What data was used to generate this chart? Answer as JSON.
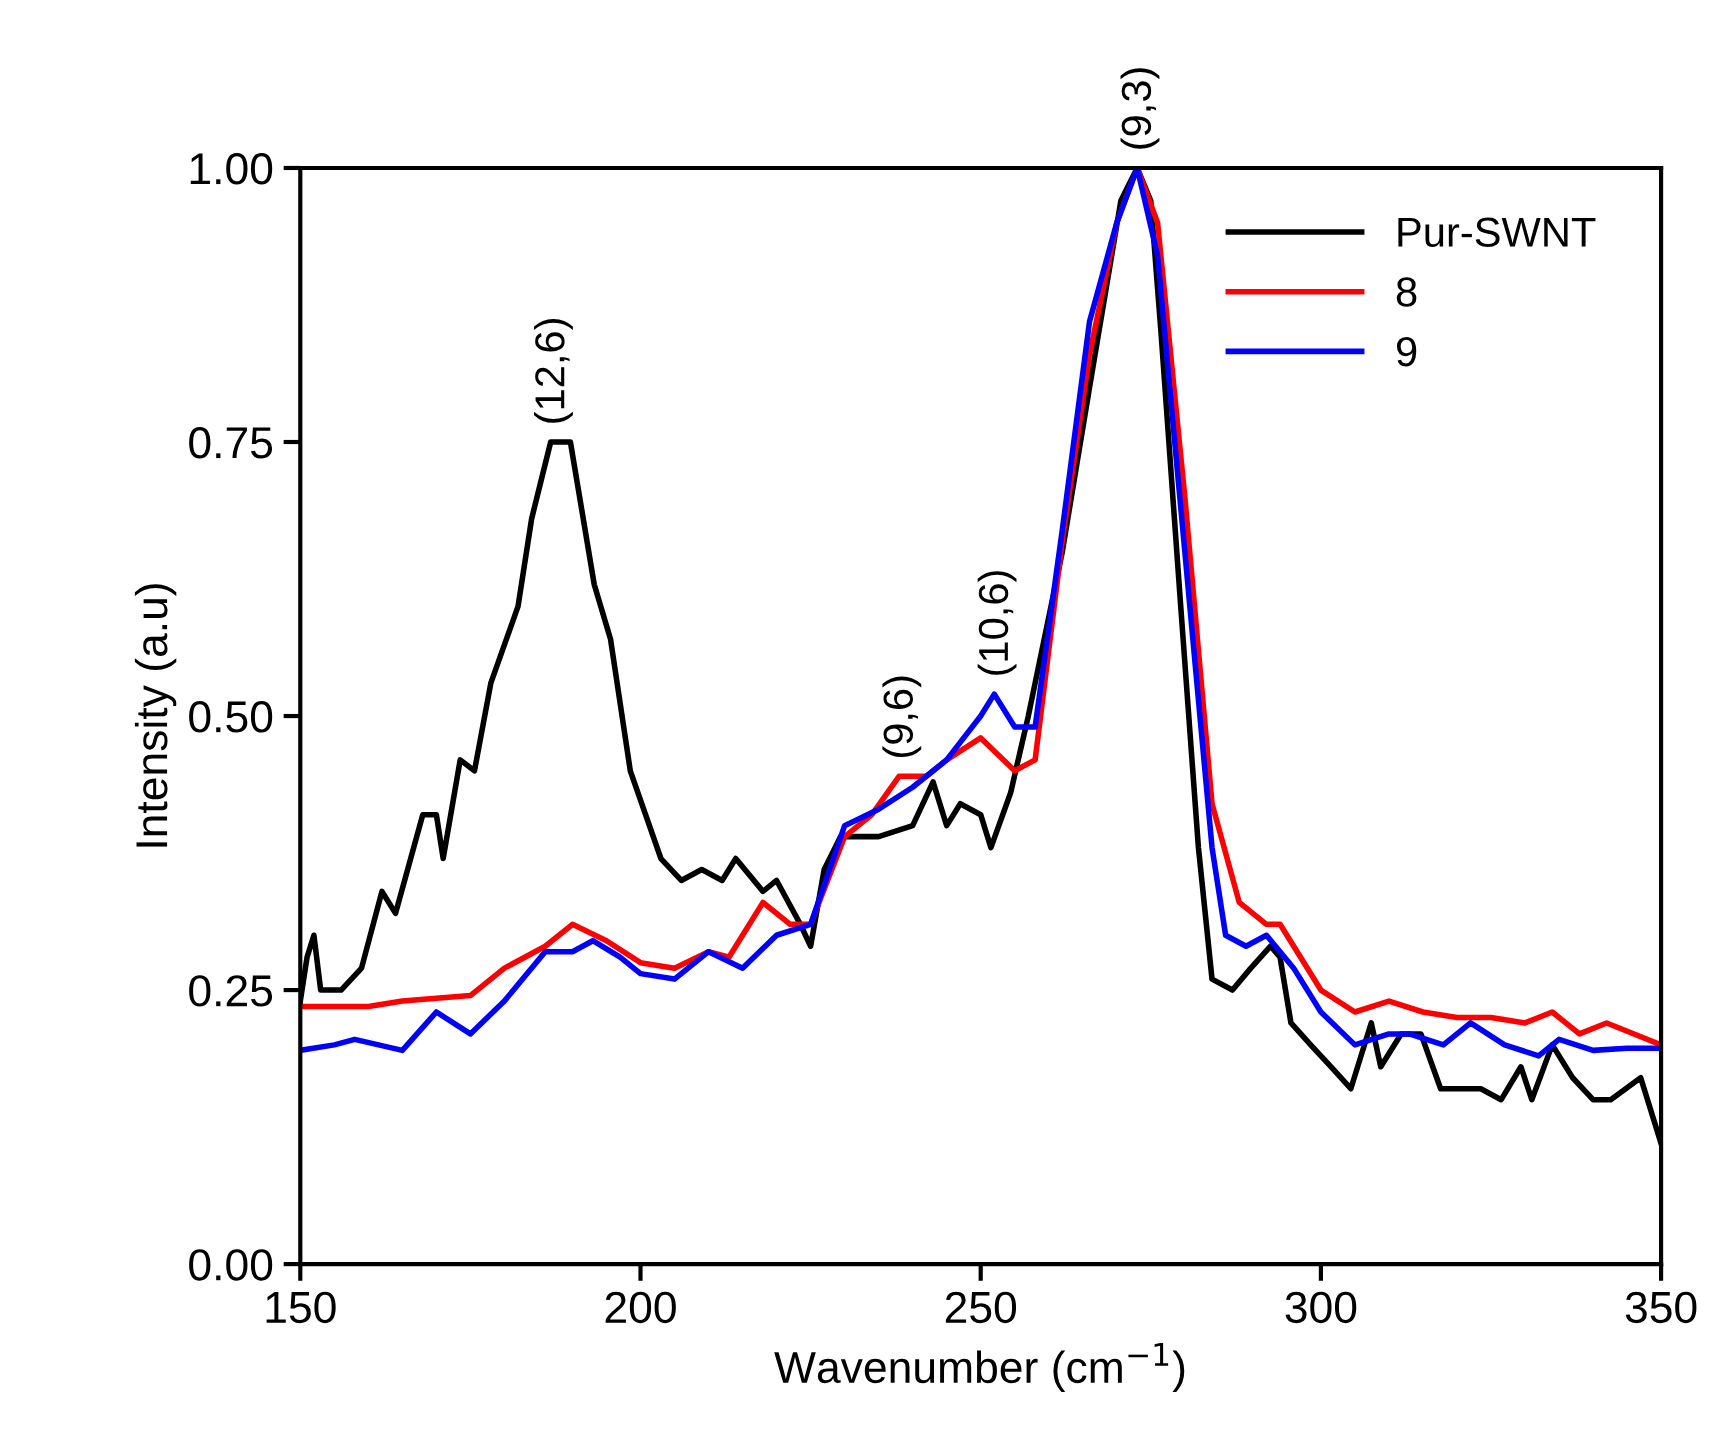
{
  "chart_data": {
    "type": "line",
    "xlabel": "Wavenumber (cm$^{−1}$)",
    "ylabel": "Intensity (a.u)",
    "xlim": [
      150,
      350
    ],
    "xticks": [
      150,
      200,
      250,
      300,
      350
    ],
    "ylim": [
      0,
      1
    ],
    "yticks": [
      {
        "value": 0,
        "label": "0.00"
      },
      {
        "value": 0.25,
        "label": "0.25"
      },
      {
        "value": 0.5,
        "label": "0.50"
      },
      {
        "value": 0.75,
        "label": "0.75"
      },
      {
        "value": 1,
        "label": "1.00"
      }
    ],
    "grid": false,
    "legend": "top right",
    "line_style": "solid",
    "marker": "none",
    "annotations": [
      {
        "text": "(12,6)",
        "x": 186.8,
        "y": 0.75
      },
      {
        "text": "(9,6)",
        "x": 238,
        "y": 0.445
      },
      {
        "text": "(10,6)",
        "x": 252,
        "y": 0.52
      },
      {
        "text": "(9,3)",
        "x": 273,
        "y": 1.0
      }
    ],
    "series": [
      {
        "name": "Pur-SWNT",
        "color": "#000000",
        "x": [
          150,
          151,
          152,
          153,
          156,
          159,
          162,
          164,
          168,
          170,
          171,
          173.5,
          175.6,
          178,
          182,
          184,
          186.8,
          189.7,
          193.2,
          195.6,
          198.5,
          203,
          206,
          209,
          212,
          214,
          218,
          220,
          223.5,
          225,
          227,
          229.4,
          235,
          240,
          243,
          245,
          247,
          250,
          251.5,
          254.4,
          257,
          262,
          266,
          270.6,
          273,
          275,
          276.5,
          279.4,
          282,
          284,
          287,
          289.7,
          292.6,
          294,
          295.6,
          298.5,
          301.5,
          304.4,
          307.4,
          308.8,
          311.8,
          314.7,
          317.6,
          323.5,
          326.5,
          329.4,
          331,
          334,
          337,
          340,
          342.6,
          347,
          350
        ],
        "values": [
          0.24,
          0.28,
          0.3,
          0.25,
          0.25,
          0.27,
          0.34,
          0.32,
          0.41,
          0.41,
          0.37,
          0.46,
          0.45,
          0.53,
          0.6,
          0.68,
          0.75,
          0.75,
          0.62,
          0.57,
          0.45,
          0.37,
          0.35,
          0.36,
          0.35,
          0.37,
          0.34,
          0.35,
          0.31,
          0.29,
          0.36,
          0.39,
          0.39,
          0.4,
          0.44,
          0.4,
          0.42,
          0.41,
          0.38,
          0.43,
          0.5,
          0.65,
          0.8,
          0.97,
          1.0,
          0.97,
          0.85,
          0.6,
          0.38,
          0.26,
          0.25,
          0.27,
          0.29,
          0.28,
          0.22,
          0.2,
          0.18,
          0.16,
          0.22,
          0.18,
          0.21,
          0.21,
          0.16,
          0.16,
          0.15,
          0.18,
          0.15,
          0.2,
          0.17,
          0.15,
          0.15,
          0.17,
          0.11
        ]
      },
      {
        "name": "8",
        "color": "#ff0000",
        "x": [
          150,
          160,
          165,
          175,
          180,
          186,
          190,
          195,
          200,
          205,
          210,
          213,
          218,
          222,
          225,
          230,
          234,
          238,
          242,
          245,
          250,
          255,
          258,
          262,
          266,
          270,
          273,
          276,
          280,
          284,
          288,
          292,
          294,
          300,
          305,
          310,
          315,
          320,
          325,
          330,
          334,
          338,
          342,
          350
        ],
        "values": [
          0.235,
          0.235,
          0.24,
          0.245,
          0.27,
          0.29,
          0.31,
          0.295,
          0.275,
          0.27,
          0.285,
          0.28,
          0.33,
          0.31,
          0.31,
          0.39,
          0.41,
          0.445,
          0.445,
          0.46,
          0.48,
          0.45,
          0.46,
          0.66,
          0.83,
          0.95,
          1.0,
          0.95,
          0.7,
          0.42,
          0.33,
          0.31,
          0.31,
          0.25,
          0.23,
          0.24,
          0.23,
          0.225,
          0.225,
          0.22,
          0.23,
          0.21,
          0.22,
          0.2
        ]
      },
      {
        "name": "9",
        "color": "#0000ff",
        "x": [
          150,
          155,
          158,
          165,
          170,
          175,
          180,
          186,
          190,
          193,
          197,
          200,
          205,
          210,
          215,
          220,
          225,
          230,
          235,
          240,
          245,
          250,
          252,
          255,
          258,
          262,
          266,
          270,
          273,
          276,
          280,
          284,
          286,
          289,
          292,
          296,
          300,
          305,
          310,
          313,
          318,
          322,
          327,
          332,
          335,
          340,
          345,
          350
        ],
        "values": [
          0.195,
          0.2,
          0.205,
          0.195,
          0.23,
          0.21,
          0.24,
          0.285,
          0.285,
          0.295,
          0.28,
          0.265,
          0.26,
          0.285,
          0.27,
          0.3,
          0.31,
          0.4,
          0.415,
          0.435,
          0.46,
          0.5,
          0.52,
          0.49,
          0.49,
          0.67,
          0.86,
          0.95,
          1.0,
          0.92,
          0.65,
          0.38,
          0.3,
          0.29,
          0.3,
          0.27,
          0.23,
          0.2,
          0.21,
          0.21,
          0.2,
          0.22,
          0.2,
          0.19,
          0.205,
          0.195,
          0.197,
          0.197
        ]
      }
    ]
  }
}
